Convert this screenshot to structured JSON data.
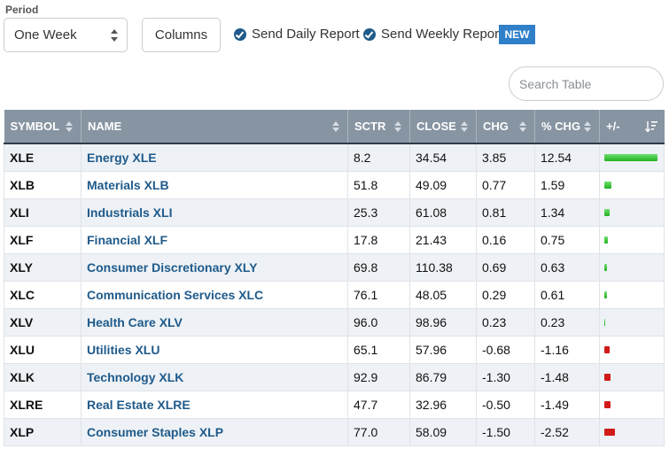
{
  "controls": {
    "period_label": "Period",
    "period_value": "One Week",
    "columns_label": "Columns",
    "send_daily": "Send Daily Report",
    "send_weekly": "Send Weekly Report",
    "new_badge": "NEW",
    "search_placeholder": "Search Table"
  },
  "table": {
    "headers": {
      "symbol": "SYMBOL",
      "name": "NAME",
      "sctr": "SCTR",
      "close": "CLOSE",
      "chg": "CHG",
      "pct_chg": "% CHG",
      "plus_minus": "+/-"
    },
    "rows": [
      {
        "symbol": "XLE",
        "name": "Energy XLE",
        "sctr": "8.2",
        "close": "34.54",
        "chg": "3.85",
        "pct_chg": "12.54",
        "pct": 12.54
      },
      {
        "symbol": "XLB",
        "name": "Materials XLB",
        "sctr": "51.8",
        "close": "49.09",
        "chg": "0.77",
        "pct_chg": "1.59",
        "pct": 1.59
      },
      {
        "symbol": "XLI",
        "name": "Industrials XLI",
        "sctr": "25.3",
        "close": "61.08",
        "chg": "0.81",
        "pct_chg": "1.34",
        "pct": 1.34
      },
      {
        "symbol": "XLF",
        "name": "Financial XLF",
        "sctr": "17.8",
        "close": "21.43",
        "chg": "0.16",
        "pct_chg": "0.75",
        "pct": 0.75
      },
      {
        "symbol": "XLY",
        "name": "Consumer Discretionary XLY",
        "sctr": "69.8",
        "close": "110.38",
        "chg": "0.69",
        "pct_chg": "0.63",
        "pct": 0.63
      },
      {
        "symbol": "XLC",
        "name": "Communication Services XLC",
        "sctr": "76.1",
        "close": "48.05",
        "chg": "0.29",
        "pct_chg": "0.61",
        "pct": 0.61
      },
      {
        "symbol": "XLV",
        "name": "Health Care XLV",
        "sctr": "96.0",
        "close": "98.96",
        "chg": "0.23",
        "pct_chg": "0.23",
        "pct": 0.23
      },
      {
        "symbol": "XLU",
        "name": "Utilities XLU",
        "sctr": "65.1",
        "close": "57.96",
        "chg": "-0.68",
        "pct_chg": "-1.16",
        "pct": -1.16
      },
      {
        "symbol": "XLK",
        "name": "Technology XLK",
        "sctr": "92.9",
        "close": "86.79",
        "chg": "-1.30",
        "pct_chg": "-1.48",
        "pct": -1.48
      },
      {
        "symbol": "XLRE",
        "name": "Real Estate XLRE",
        "sctr": "47.7",
        "close": "32.96",
        "chg": "-0.50",
        "pct_chg": "-1.49",
        "pct": -1.49
      },
      {
        "symbol": "XLP",
        "name": "Consumer Staples XLP",
        "sctr": "77.0",
        "close": "58.09",
        "chg": "-1.50",
        "pct_chg": "-2.52",
        "pct": -2.52
      }
    ]
  },
  "colors": {
    "positive_bar": "#22b022",
    "negative_bar": "#d11a1a",
    "header_bg": "#8794a2",
    "link": "#1f5a8a",
    "badge": "#2f7fc9"
  }
}
